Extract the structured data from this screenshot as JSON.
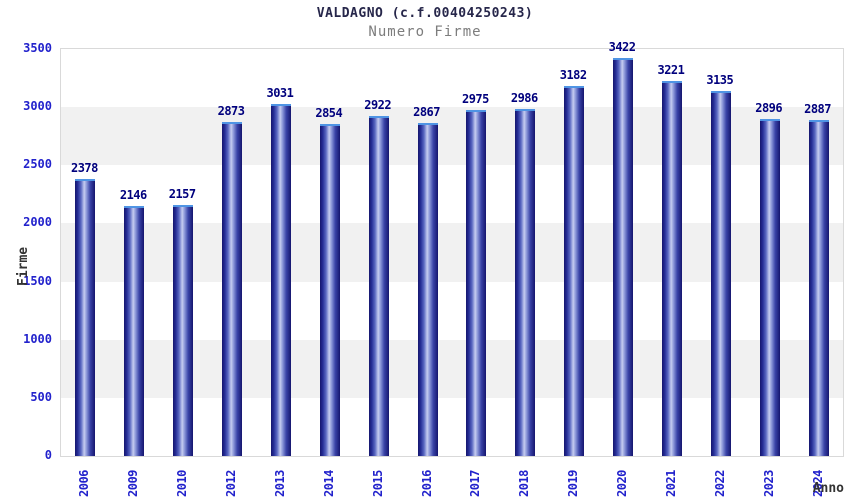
{
  "header": {
    "title": "VALDAGNO (c.f.00404250243)",
    "subtitle": "Numero Firme"
  },
  "chart_data": {
    "type": "bar",
    "title": "VALDAGNO (c.f.00404250243)",
    "subtitle": "Numero Firme",
    "categories": [
      "2006",
      "2009",
      "2010",
      "2012",
      "2013",
      "2014",
      "2015",
      "2016",
      "2017",
      "2018",
      "2019",
      "2020",
      "2021",
      "2022",
      "2023",
      "2024"
    ],
    "values": [
      2378,
      2146,
      2157,
      2873,
      3031,
      2854,
      2922,
      2867,
      2975,
      2986,
      3182,
      3422,
      3221,
      3135,
      2896,
      2887
    ],
    "xlabel": "Anno",
    "ylabel": "Firme",
    "ylim": [
      0,
      3500
    ],
    "ytick_step": 500,
    "yticks": [
      "0",
      "500",
      "1000",
      "1500",
      "2000",
      "2500",
      "3000",
      "3500"
    ],
    "legend": "none",
    "grid": "alternating-horizontal-bands",
    "colors": {
      "bar_edge": "#15156e",
      "bar_highlight": "#c6ccf0",
      "bar_cap": "#4f94e4",
      "tick_label": "#2222cc",
      "value_label": "#00007d",
      "title_text": "#26264a",
      "subtitle_text": "#7d7d7d",
      "axis_title_text": "#333333",
      "band_fill": "#f1f1f1",
      "plot_border": "#d9d9d9"
    }
  }
}
